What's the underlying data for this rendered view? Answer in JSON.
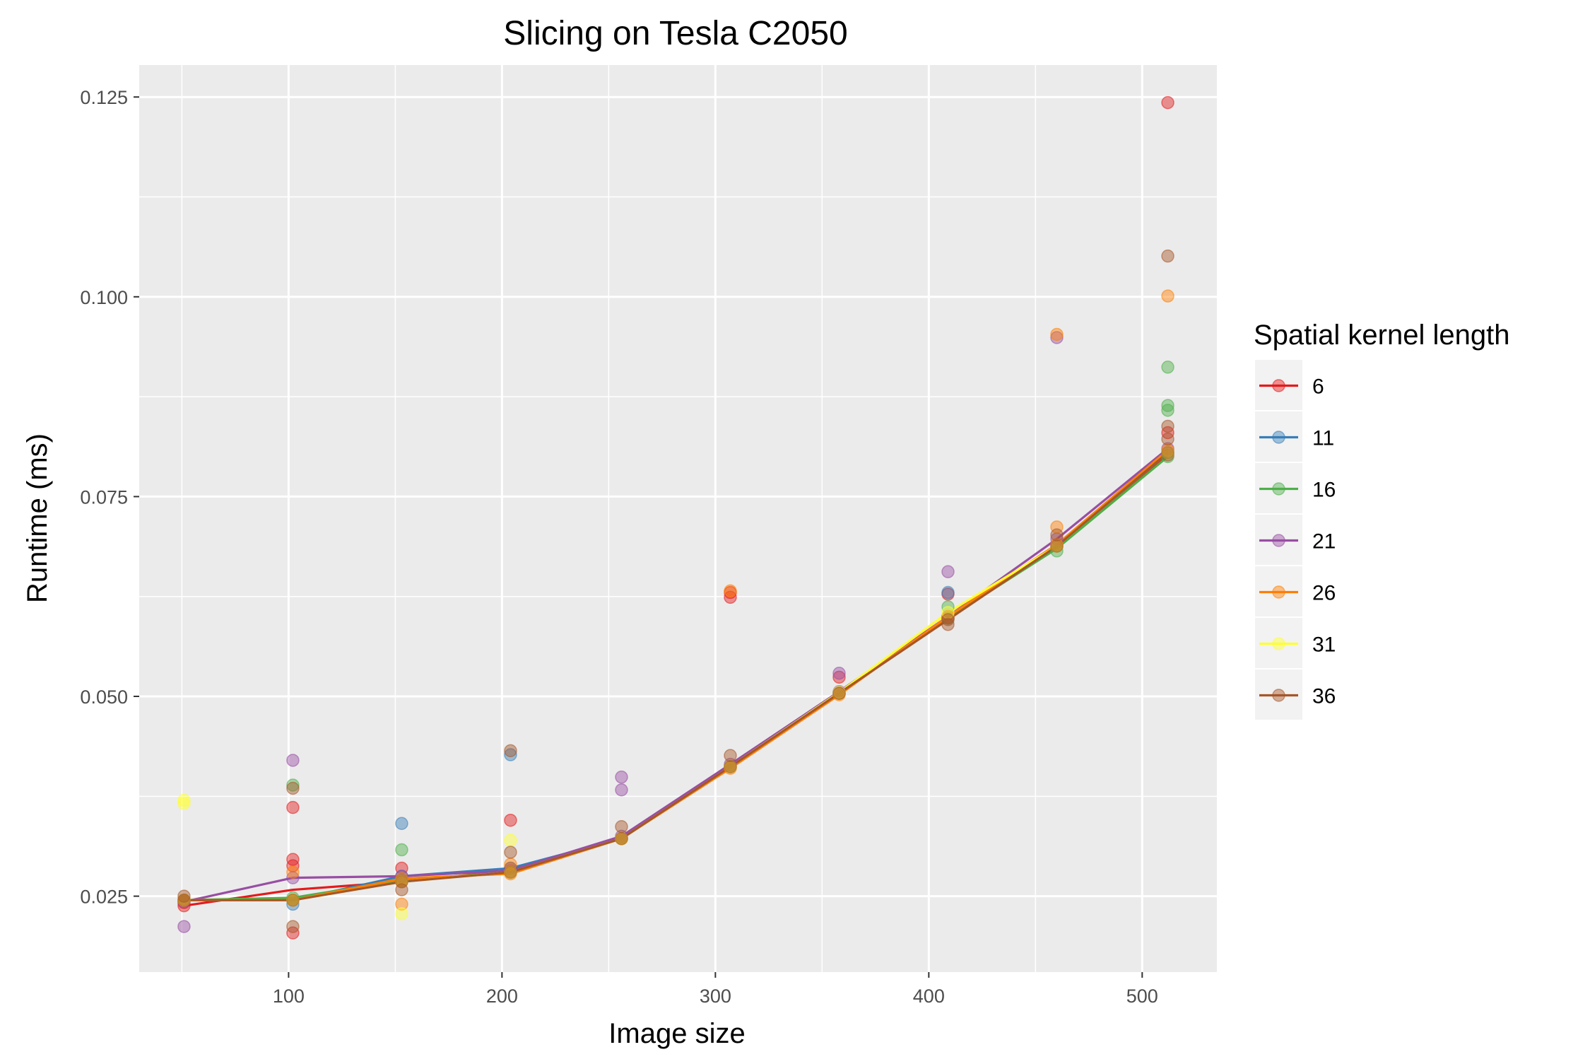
{
  "chart_data": {
    "type": "line",
    "title": "Slicing on Tesla C2050",
    "xlabel": "Image size",
    "ylabel": "Runtime (ms)",
    "xlim": [
      30,
      535
    ],
    "ylim": [
      0.0155,
      0.129
    ],
    "x_ticks": [
      100,
      200,
      300,
      400,
      500
    ],
    "x_tick_labels": [
      "100",
      "200",
      "300",
      "400",
      "500"
    ],
    "y_ticks": [
      0.025,
      0.05,
      0.075,
      0.1,
      0.125
    ],
    "y_tick_labels": [
      "0.025",
      "0.050",
      "0.075",
      "0.100",
      "0.125"
    ],
    "grid": true,
    "legend": {
      "title": "Spatial kernel length",
      "position": "right"
    },
    "x": [
      51,
      102,
      153,
      204,
      256,
      307,
      358,
      409,
      460,
      512
    ],
    "series": [
      {
        "name": "6",
        "color": "#E41A1C",
        "values": [
          0.0238,
          0.0258,
          0.0268,
          0.0282,
          0.0322,
          0.0412,
          0.0504,
          0.0598,
          0.0688,
          0.0802
        ],
        "points": [
          [
            51,
            0.0238
          ],
          [
            51,
            0.0242
          ],
          [
            102,
            0.0296
          ],
          [
            102,
            0.0288
          ],
          [
            102,
            0.0361
          ],
          [
            102,
            0.0204
          ],
          [
            153,
            0.0268
          ],
          [
            153,
            0.0285
          ],
          [
            204,
            0.0345
          ],
          [
            204,
            0.0285
          ],
          [
            256,
            0.0322
          ],
          [
            307,
            0.063
          ],
          [
            307,
            0.0624
          ],
          [
            307,
            0.0412
          ],
          [
            358,
            0.0524
          ],
          [
            358,
            0.0504
          ],
          [
            409,
            0.0628
          ],
          [
            409,
            0.0598
          ],
          [
            460,
            0.0688
          ],
          [
            512,
            0.1243
          ],
          [
            512,
            0.0802
          ],
          [
            512,
            0.083
          ]
        ]
      },
      {
        "name": "11",
        "color": "#377EB8",
        "values": [
          0.0245,
          0.0245,
          0.0275,
          0.0285,
          0.0322,
          0.0412,
          0.0504,
          0.0598,
          0.0688,
          0.0805
        ],
        "points": [
          [
            51,
            0.0245
          ],
          [
            102,
            0.0245
          ],
          [
            102,
            0.024
          ],
          [
            153,
            0.0341
          ],
          [
            153,
            0.0275
          ],
          [
            204,
            0.0427
          ],
          [
            204,
            0.0285
          ],
          [
            256,
            0.0322
          ],
          [
            307,
            0.0412
          ],
          [
            358,
            0.0504
          ],
          [
            409,
            0.063
          ],
          [
            409,
            0.0598
          ],
          [
            460,
            0.0688
          ],
          [
            512,
            0.0805
          ]
        ]
      },
      {
        "name": "16",
        "color": "#4DAF4A",
        "values": [
          0.0245,
          0.0248,
          0.027,
          0.028,
          0.0322,
          0.0412,
          0.0504,
          0.0598,
          0.0685,
          0.08
        ],
        "points": [
          [
            51,
            0.0245
          ],
          [
            102,
            0.0389
          ],
          [
            102,
            0.0248
          ],
          [
            153,
            0.0308
          ],
          [
            153,
            0.027
          ],
          [
            204,
            0.028
          ],
          [
            256,
            0.0322
          ],
          [
            307,
            0.0412
          ],
          [
            358,
            0.0504
          ],
          [
            409,
            0.0612
          ],
          [
            409,
            0.0598
          ],
          [
            460,
            0.0682
          ],
          [
            512,
            0.0912
          ],
          [
            512,
            0.0864
          ],
          [
            512,
            0.0858
          ],
          [
            512,
            0.08
          ]
        ]
      },
      {
        "name": "21",
        "color": "#984EA3",
        "values": [
          0.0243,
          0.0273,
          0.0275,
          0.0282,
          0.0325,
          0.0415,
          0.0506,
          0.06,
          0.0697,
          0.081
        ],
        "points": [
          [
            51,
            0.0212
          ],
          [
            51,
            0.0243
          ],
          [
            102,
            0.042
          ],
          [
            102,
            0.0273
          ],
          [
            153,
            0.0275
          ],
          [
            204,
            0.0282
          ],
          [
            256,
            0.0399
          ],
          [
            256,
            0.0383
          ],
          [
            256,
            0.0325
          ],
          [
            307,
            0.0415
          ],
          [
            358,
            0.0529
          ],
          [
            358,
            0.0506
          ],
          [
            409,
            0.0656
          ],
          [
            409,
            0.06
          ],
          [
            460,
            0.0949
          ],
          [
            460,
            0.0697
          ],
          [
            512,
            0.081
          ]
        ]
      },
      {
        "name": "26",
        "color": "#FF7F00",
        "values": [
          0.0245,
          0.0245,
          0.0272,
          0.0278,
          0.0322,
          0.041,
          0.0502,
          0.06,
          0.069,
          0.0808
        ],
        "points": [
          [
            51,
            0.0245
          ],
          [
            102,
            0.028
          ],
          [
            102,
            0.0245
          ],
          [
            153,
            0.024
          ],
          [
            153,
            0.0272
          ],
          [
            204,
            0.0278
          ],
          [
            204,
            0.029
          ],
          [
            256,
            0.0322
          ],
          [
            307,
            0.0632
          ],
          [
            307,
            0.041
          ],
          [
            358,
            0.0502
          ],
          [
            409,
            0.06
          ],
          [
            460,
            0.0953
          ],
          [
            460,
            0.0712
          ],
          [
            460,
            0.069
          ],
          [
            512,
            0.1001
          ],
          [
            512,
            0.0808
          ]
        ]
      },
      {
        "name": "31",
        "color": "#FFFF33",
        "values": [
          0.0245,
          0.0245,
          0.0268,
          0.028,
          0.0322,
          0.0412,
          0.0505,
          0.0605,
          0.0688,
          0.0805
        ],
        "points": [
          [
            51,
            0.037
          ],
          [
            51,
            0.0366
          ],
          [
            51,
            0.0245
          ],
          [
            102,
            0.0245
          ],
          [
            153,
            0.0228
          ],
          [
            153,
            0.0268
          ],
          [
            204,
            0.032
          ],
          [
            204,
            0.028
          ],
          [
            256,
            0.0322
          ],
          [
            307,
            0.0412
          ],
          [
            358,
            0.0505
          ],
          [
            409,
            0.0605
          ],
          [
            460,
            0.0688
          ],
          [
            512,
            0.0805
          ]
        ]
      },
      {
        "name": "36",
        "color": "#A65628",
        "values": [
          0.0245,
          0.0245,
          0.0268,
          0.028,
          0.0322,
          0.0412,
          0.0504,
          0.0596,
          0.0688,
          0.0805
        ],
        "points": [
          [
            51,
            0.025
          ],
          [
            51,
            0.0245
          ],
          [
            102,
            0.0385
          ],
          [
            102,
            0.0212
          ],
          [
            102,
            0.0245
          ],
          [
            153,
            0.0258
          ],
          [
            153,
            0.0268
          ],
          [
            204,
            0.0432
          ],
          [
            204,
            0.0305
          ],
          [
            204,
            0.028
          ],
          [
            256,
            0.0337
          ],
          [
            256,
            0.0322
          ],
          [
            307,
            0.0426
          ],
          [
            307,
            0.0412
          ],
          [
            358,
            0.0504
          ],
          [
            409,
            0.059
          ],
          [
            409,
            0.0596
          ],
          [
            460,
            0.0702
          ],
          [
            460,
            0.0688
          ],
          [
            512,
            0.1051
          ],
          [
            512,
            0.0838
          ],
          [
            512,
            0.0822
          ],
          [
            512,
            0.0805
          ]
        ]
      }
    ]
  }
}
